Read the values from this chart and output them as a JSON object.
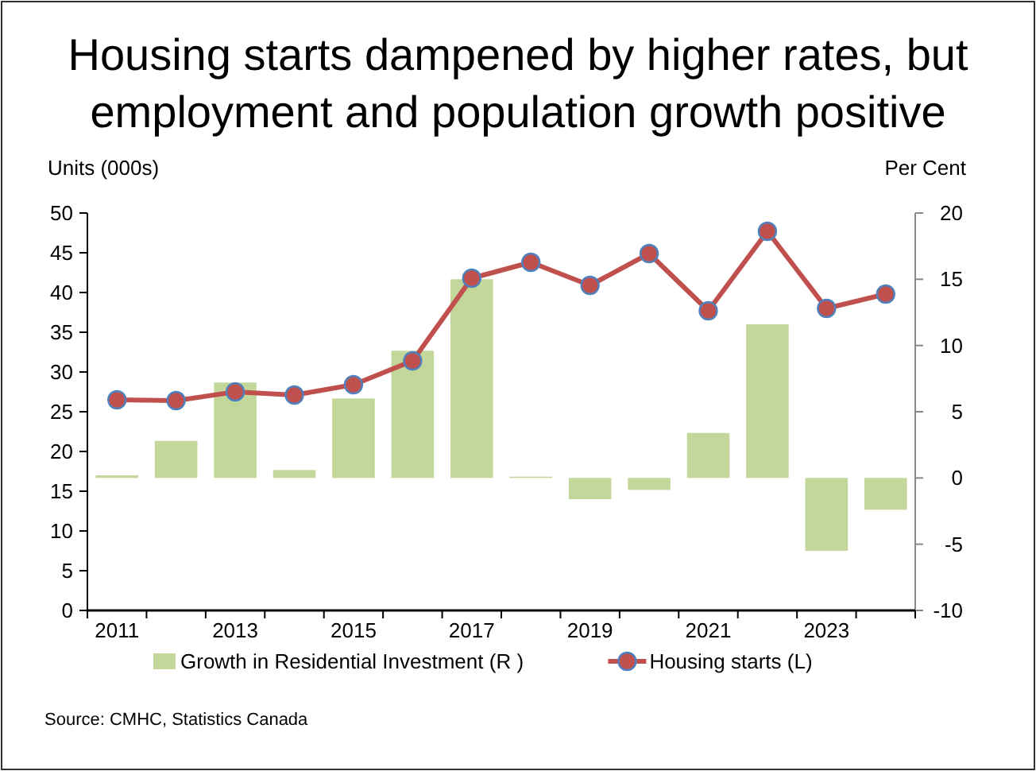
{
  "chart_data": {
    "type": "bar",
    "title": "Housing starts dampened by higher rates, but employment and population growth positive",
    "ylabel": "Units (000s)",
    "y2label": "Per Cent",
    "categories": [
      "2011",
      null,
      "2013",
      null,
      "2015",
      null,
      "2017",
      null,
      "2019",
      null,
      "2021",
      null,
      "2023",
      null
    ],
    "series": [
      {
        "name": "Growth in Residential Investment (R )",
        "axis": "y2",
        "color": "#c4d79b",
        "values": [
          0.2,
          2.8,
          7.2,
          0.6,
          6.0,
          9.6,
          15.0,
          0.1,
          -1.6,
          -0.9,
          3.4,
          11.6,
          -5.5,
          -2.4
        ]
      },
      {
        "name": "Housing starts (L)",
        "type": "line",
        "axis": "y",
        "color": "#c0504d",
        "values": [
          26.5,
          26.4,
          27.5,
          27.1,
          28.4,
          31.4,
          41.8,
          43.8,
          40.9,
          44.9,
          37.7,
          47.7,
          38.0,
          39.8
        ]
      }
    ],
    "ylim": [
      0,
      50
    ],
    "yticks": [
      0,
      5,
      10,
      15,
      20,
      25,
      30,
      35,
      40,
      45,
      50
    ],
    "y2lim": [
      -10,
      20
    ],
    "y2ticks": [
      -10,
      -5,
      0,
      5,
      10,
      15,
      20
    ],
    "marker": "circle",
    "legend": "bottom",
    "grid": false,
    "annotations": [
      "Source: CMHC, Statistics Canada"
    ]
  }
}
